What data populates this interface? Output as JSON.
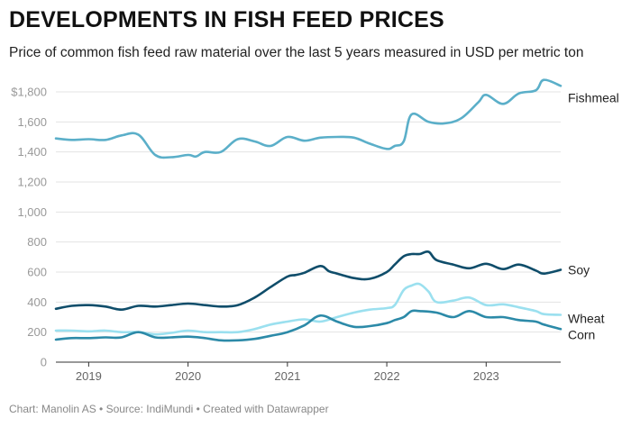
{
  "header": {
    "title": "DEVELOPMENTS IN FISH FEED PRICES",
    "subtitle": "Price of common fish feed raw material over the last 5 years measured in USD per metric ton"
  },
  "footer": {
    "credit": "Chart: Manolin AS • Source: IndiMundi • Created with Datawrapper"
  },
  "chart_data": {
    "type": "line",
    "title": "DEVELOPMENTS IN FISH FEED PRICES",
    "subtitle": "Price of common fish feed raw material over the last 5 years measured in USD per metric ton",
    "xlabel": "",
    "ylabel": "",
    "ylim": [
      0,
      1900
    ],
    "xlim": [
      2018.67,
      2023.75
    ],
    "grid": true,
    "legend": "direct labels at line ends",
    "yticks": [
      {
        "value": 0,
        "label": "0"
      },
      {
        "value": 200,
        "label": "200"
      },
      {
        "value": 400,
        "label": "400"
      },
      {
        "value": 600,
        "label": "600"
      },
      {
        "value": 800,
        "label": "800"
      },
      {
        "value": 1000,
        "label": "1,000"
      },
      {
        "value": 1200,
        "label": "1,200"
      },
      {
        "value": 1400,
        "label": "1,400"
      },
      {
        "value": 1600,
        "label": "1,600"
      },
      {
        "value": 1800,
        "label": "$1,800"
      }
    ],
    "xticks": [
      {
        "value": 2019.0,
        "label": "2019"
      },
      {
        "value": 2020.0,
        "label": "2020"
      },
      {
        "value": 2021.0,
        "label": "2021"
      },
      {
        "value": 2022.0,
        "label": "2022"
      },
      {
        "value": 2023.0,
        "label": "2023"
      }
    ],
    "series": [
      {
        "name": "Fishmeal",
        "color": "#5bafc9",
        "x": [
          2018.67,
          2018.83,
          2019.0,
          2019.17,
          2019.33,
          2019.5,
          2019.67,
          2019.83,
          2020.0,
          2020.08,
          2020.17,
          2020.33,
          2020.5,
          2020.67,
          2020.83,
          2021.0,
          2021.17,
          2021.33,
          2021.5,
          2021.67,
          2021.83,
          2022.0,
          2022.08,
          2022.17,
          2022.25,
          2022.42,
          2022.58,
          2022.75,
          2022.92,
          2023.0,
          2023.17,
          2023.33,
          2023.5,
          2023.58,
          2023.75
        ],
        "values": [
          1490,
          1480,
          1485,
          1480,
          1510,
          1515,
          1380,
          1365,
          1380,
          1370,
          1400,
          1400,
          1485,
          1470,
          1440,
          1500,
          1475,
          1495,
          1500,
          1495,
          1455,
          1420,
          1440,
          1470,
          1650,
          1600,
          1590,
          1625,
          1730,
          1780,
          1720,
          1790,
          1810,
          1880,
          1840
        ]
      },
      {
        "name": "Soy",
        "color": "#0f4d6a",
        "x": [
          2018.67,
          2018.83,
          2019.0,
          2019.17,
          2019.33,
          2019.5,
          2019.67,
          2019.83,
          2020.0,
          2020.17,
          2020.33,
          2020.5,
          2020.67,
          2020.83,
          2021.0,
          2021.08,
          2021.17,
          2021.33,
          2021.42,
          2021.5,
          2021.67,
          2021.83,
          2022.0,
          2022.08,
          2022.17,
          2022.25,
          2022.33,
          2022.42,
          2022.5,
          2022.67,
          2022.83,
          2023.0,
          2023.17,
          2023.33,
          2023.5,
          2023.58,
          2023.75
        ],
        "values": [
          355,
          375,
          380,
          370,
          350,
          375,
          370,
          380,
          390,
          380,
          370,
          380,
          430,
          500,
          570,
          580,
          595,
          640,
          605,
          590,
          560,
          555,
          600,
          650,
          705,
          720,
          720,
          735,
          680,
          650,
          625,
          655,
          620,
          650,
          610,
          590,
          615
        ]
      },
      {
        "name": "Wheat",
        "color": "#9be0ef",
        "x": [
          2018.67,
          2018.83,
          2019.0,
          2019.17,
          2019.33,
          2019.5,
          2019.67,
          2019.83,
          2020.0,
          2020.17,
          2020.33,
          2020.5,
          2020.67,
          2020.83,
          2021.0,
          2021.17,
          2021.33,
          2021.5,
          2021.67,
          2021.83,
          2022.0,
          2022.08,
          2022.17,
          2022.25,
          2022.33,
          2022.42,
          2022.5,
          2022.67,
          2022.83,
          2023.0,
          2023.17,
          2023.33,
          2023.5,
          2023.58,
          2023.75
        ],
        "values": [
          210,
          210,
          205,
          210,
          200,
          200,
          185,
          195,
          210,
          200,
          200,
          200,
          220,
          250,
          270,
          285,
          270,
          300,
          330,
          350,
          360,
          380,
          480,
          510,
          520,
          470,
          400,
          410,
          430,
          380,
          385,
          365,
          340,
          320,
          315
        ]
      },
      {
        "name": "Corn",
        "color": "#2c8aa8",
        "x": [
          2018.67,
          2018.83,
          2019.0,
          2019.17,
          2019.33,
          2019.5,
          2019.67,
          2019.83,
          2020.0,
          2020.17,
          2020.33,
          2020.5,
          2020.67,
          2020.83,
          2021.0,
          2021.17,
          2021.33,
          2021.5,
          2021.67,
          2021.83,
          2022.0,
          2022.08,
          2022.17,
          2022.25,
          2022.33,
          2022.5,
          2022.67,
          2022.83,
          2023.0,
          2023.17,
          2023.33,
          2023.5,
          2023.58,
          2023.75
        ],
        "values": [
          150,
          160,
          160,
          165,
          165,
          200,
          165,
          165,
          170,
          160,
          145,
          145,
          155,
          175,
          200,
          245,
          310,
          270,
          235,
          240,
          260,
          280,
          300,
          340,
          340,
          330,
          300,
          340,
          300,
          300,
          280,
          270,
          250,
          220
        ]
      }
    ]
  }
}
